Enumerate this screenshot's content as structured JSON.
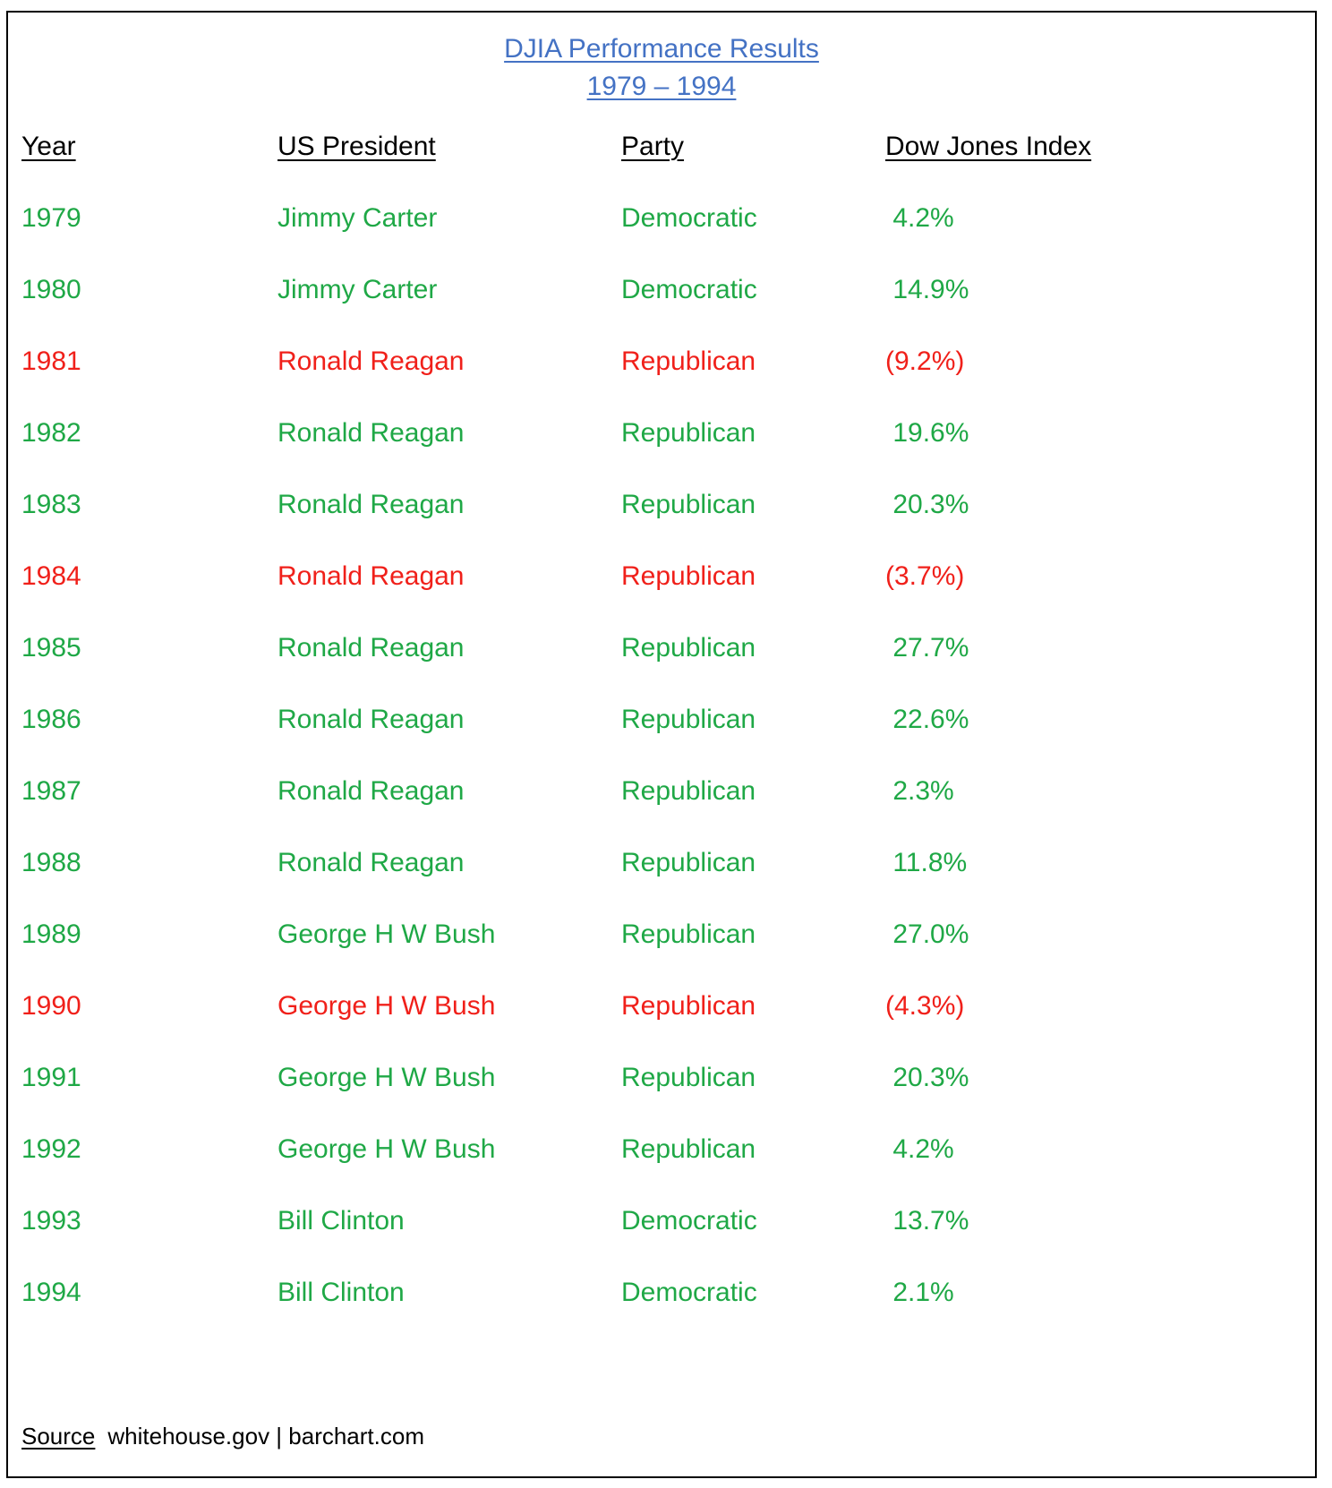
{
  "title": {
    "line1": "DJIA Performance Results",
    "line2": "1979 – 1994"
  },
  "colors": {
    "title": "#4472C4",
    "positive": "#1FA846",
    "negative": "#F0201A",
    "header": "#000000"
  },
  "headers": {
    "year": "Year",
    "president": "US President",
    "party": "Party",
    "dow": "Dow Jones Index"
  },
  "rows": [
    {
      "year": "1979",
      "president": "Jimmy Carter",
      "party": "Democratic",
      "dow": " 4.2%",
      "negative": false
    },
    {
      "year": "1980",
      "president": "Jimmy Carter",
      "party": "Democratic",
      "dow": " 14.9%",
      "negative": false
    },
    {
      "year": "1981",
      "president": "Ronald Reagan",
      "party": "Republican",
      "dow": "(9.2%)",
      "negative": true
    },
    {
      "year": "1982",
      "president": "Ronald Reagan",
      "party": "Republican",
      "dow": " 19.6%",
      "negative": false
    },
    {
      "year": "1983",
      "president": "Ronald Reagan",
      "party": "Republican",
      "dow": " 20.3%",
      "negative": false
    },
    {
      "year": "1984",
      "president": "Ronald Reagan",
      "party": "Republican",
      "dow": "(3.7%)",
      "negative": true
    },
    {
      "year": "1985",
      "president": "Ronald Reagan",
      "party": "Republican",
      "dow": " 27.7%",
      "negative": false
    },
    {
      "year": "1986",
      "president": "Ronald Reagan",
      "party": "Republican",
      "dow": " 22.6%",
      "negative": false
    },
    {
      "year": "1987",
      "president": "Ronald Reagan",
      "party": "Republican",
      "dow": " 2.3%",
      "negative": false
    },
    {
      "year": "1988",
      "president": "Ronald Reagan",
      "party": "Republican",
      "dow": " 11.8%",
      "negative": false
    },
    {
      "year": "1989",
      "president": "George H W Bush",
      "party": "Republican",
      "dow": " 27.0%",
      "negative": false
    },
    {
      "year": "1990",
      "president": "George H W Bush",
      "party": "Republican",
      "dow": "(4.3%)",
      "negative": true
    },
    {
      "year": "1991",
      "president": "George H W Bush",
      "party": "Republican",
      "dow": " 20.3%",
      "negative": false
    },
    {
      "year": "1992",
      "president": "George H W Bush",
      "party": "Republican",
      "dow": " 4.2%",
      "negative": false
    },
    {
      "year": "1993",
      "president": "Bill Clinton",
      "party": "Democratic",
      "dow": " 13.7%",
      "negative": false
    },
    {
      "year": "1994",
      "president": "Bill Clinton",
      "party": "Democratic",
      "dow": " 2.1%",
      "negative": false
    }
  ],
  "source": {
    "label": "Source",
    "text": "whitehouse.gov | barchart.com"
  }
}
